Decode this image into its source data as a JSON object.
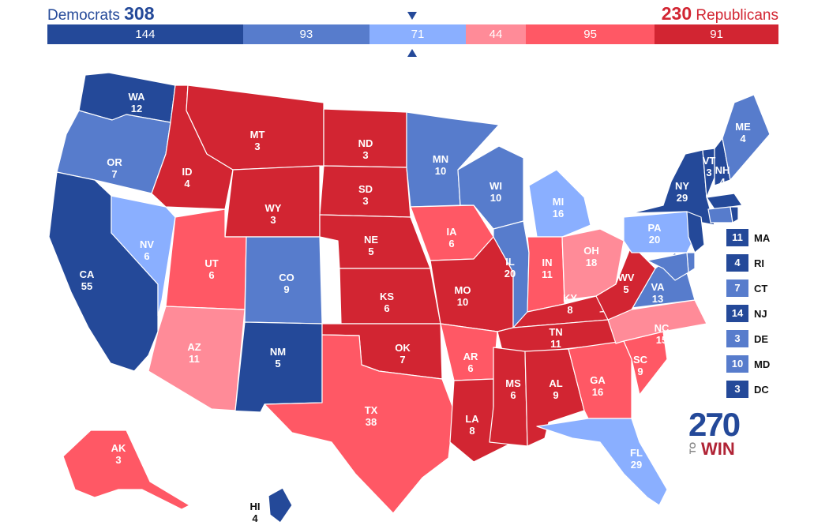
{
  "header": {
    "dem_label": "Democrats",
    "dem_total": "308",
    "rep_total": "230",
    "rep_label": "Republicans"
  },
  "bar": [
    {
      "value": "144",
      "votes": 144,
      "color": "#244999"
    },
    {
      "value": "93",
      "votes": 93,
      "color": "#577ccc"
    },
    {
      "value": "71",
      "votes": 71,
      "color": "#8aafff"
    },
    {
      "value": "44",
      "votes": 44,
      "color": "#ff8b98"
    },
    {
      "value": "95",
      "votes": 95,
      "color": "#ff5865"
    },
    {
      "value": "91",
      "votes": 91,
      "color": "#d22532"
    }
  ],
  "colors": {
    "safe_dem": "#244999",
    "likely_dem": "#577ccc",
    "lean_dem": "#8aafff",
    "lean_rep": "#ff8b98",
    "likely_rep": "#ff5865",
    "safe_rep": "#d22532"
  },
  "states": {
    "WA": {
      "abbr": "WA",
      "ev": "12",
      "rating": "safe_dem"
    },
    "OR": {
      "abbr": "OR",
      "ev": "7",
      "rating": "likely_dem"
    },
    "CA": {
      "abbr": "CA",
      "ev": "55",
      "rating": "safe_dem"
    },
    "NV": {
      "abbr": "NV",
      "ev": "6",
      "rating": "lean_dem"
    },
    "ID": {
      "abbr": "ID",
      "ev": "4",
      "rating": "safe_rep"
    },
    "MT": {
      "abbr": "MT",
      "ev": "3",
      "rating": "safe_rep"
    },
    "WY": {
      "abbr": "WY",
      "ev": "3",
      "rating": "safe_rep"
    },
    "UT": {
      "abbr": "UT",
      "ev": "6",
      "rating": "likely_rep"
    },
    "AZ": {
      "abbr": "AZ",
      "ev": "11",
      "rating": "lean_rep"
    },
    "CO": {
      "abbr": "CO",
      "ev": "9",
      "rating": "likely_dem"
    },
    "NM": {
      "abbr": "NM",
      "ev": "5",
      "rating": "safe_dem"
    },
    "ND": {
      "abbr": "ND",
      "ev": "3",
      "rating": "safe_rep"
    },
    "SD": {
      "abbr": "SD",
      "ev": "3",
      "rating": "safe_rep"
    },
    "NE": {
      "abbr": "NE",
      "ev": "5",
      "rating": "safe_rep"
    },
    "KS": {
      "abbr": "KS",
      "ev": "6",
      "rating": "safe_rep"
    },
    "OK": {
      "abbr": "OK",
      "ev": "7",
      "rating": "safe_rep"
    },
    "TX": {
      "abbr": "TX",
      "ev": "38",
      "rating": "likely_rep"
    },
    "MN": {
      "abbr": "MN",
      "ev": "10",
      "rating": "likely_dem"
    },
    "IA": {
      "abbr": "IA",
      "ev": "6",
      "rating": "likely_rep"
    },
    "MO": {
      "abbr": "MO",
      "ev": "10",
      "rating": "safe_rep"
    },
    "AR": {
      "abbr": "AR",
      "ev": "6",
      "rating": "likely_rep"
    },
    "LA": {
      "abbr": "LA",
      "ev": "8",
      "rating": "safe_rep"
    },
    "WI": {
      "abbr": "WI",
      "ev": "10",
      "rating": "likely_dem"
    },
    "IL": {
      "abbr": "IL",
      "ev": "20",
      "rating": "likely_dem"
    },
    "MI": {
      "abbr": "MI",
      "ev": "16",
      "rating": "lean_dem"
    },
    "IN": {
      "abbr": "IN",
      "ev": "11",
      "rating": "likely_rep"
    },
    "OH": {
      "abbr": "OH",
      "ev": "18",
      "rating": "lean_rep"
    },
    "KY": {
      "abbr": "KY",
      "ev": "8",
      "rating": "safe_rep"
    },
    "TN": {
      "abbr": "TN",
      "ev": "11",
      "rating": "safe_rep"
    },
    "MS": {
      "abbr": "MS",
      "ev": "6",
      "rating": "safe_rep"
    },
    "AL": {
      "abbr": "AL",
      "ev": "9",
      "rating": "safe_rep"
    },
    "GA": {
      "abbr": "GA",
      "ev": "16",
      "rating": "likely_rep"
    },
    "FL": {
      "abbr": "FL",
      "ev": "29",
      "rating": "lean_dem"
    },
    "SC": {
      "abbr": "SC",
      "ev": "9",
      "rating": "likely_rep"
    },
    "NC": {
      "abbr": "NC",
      "ev": "15",
      "rating": "lean_rep"
    },
    "VA": {
      "abbr": "VA",
      "ev": "13",
      "rating": "likely_dem"
    },
    "WV": {
      "abbr": "WV",
      "ev": "5",
      "rating": "safe_rep"
    },
    "PA": {
      "abbr": "PA",
      "ev": "20",
      "rating": "lean_dem"
    },
    "NY": {
      "abbr": "NY",
      "ev": "29",
      "rating": "safe_dem"
    },
    "VT": {
      "abbr": "VT",
      "ev": "3",
      "rating": "safe_dem"
    },
    "NH": {
      "abbr": "NH",
      "ev": "4",
      "rating": "safe_dem"
    },
    "ME": {
      "abbr": "ME",
      "ev": "4",
      "rating": "likely_dem"
    },
    "AK": {
      "abbr": "AK",
      "ev": "3",
      "rating": "likely_rep"
    },
    "HI": {
      "abbr": "HI",
      "ev": "4",
      "rating": "safe_dem"
    }
  },
  "legend": [
    {
      "ev": "11",
      "abbr": "MA",
      "color": "#244999"
    },
    {
      "ev": "4",
      "abbr": "RI",
      "color": "#244999"
    },
    {
      "ev": "7",
      "abbr": "CT",
      "color": "#577ccc"
    },
    {
      "ev": "14",
      "abbr": "NJ",
      "color": "#244999"
    },
    {
      "ev": "3",
      "abbr": "DE",
      "color": "#577ccc"
    },
    {
      "ev": "10",
      "abbr": "MD",
      "color": "#577ccc"
    },
    {
      "ev": "3",
      "abbr": "DC",
      "color": "#244999"
    }
  ],
  "logo": {
    "number": "270",
    "to": "TO",
    "win": "WIN"
  }
}
